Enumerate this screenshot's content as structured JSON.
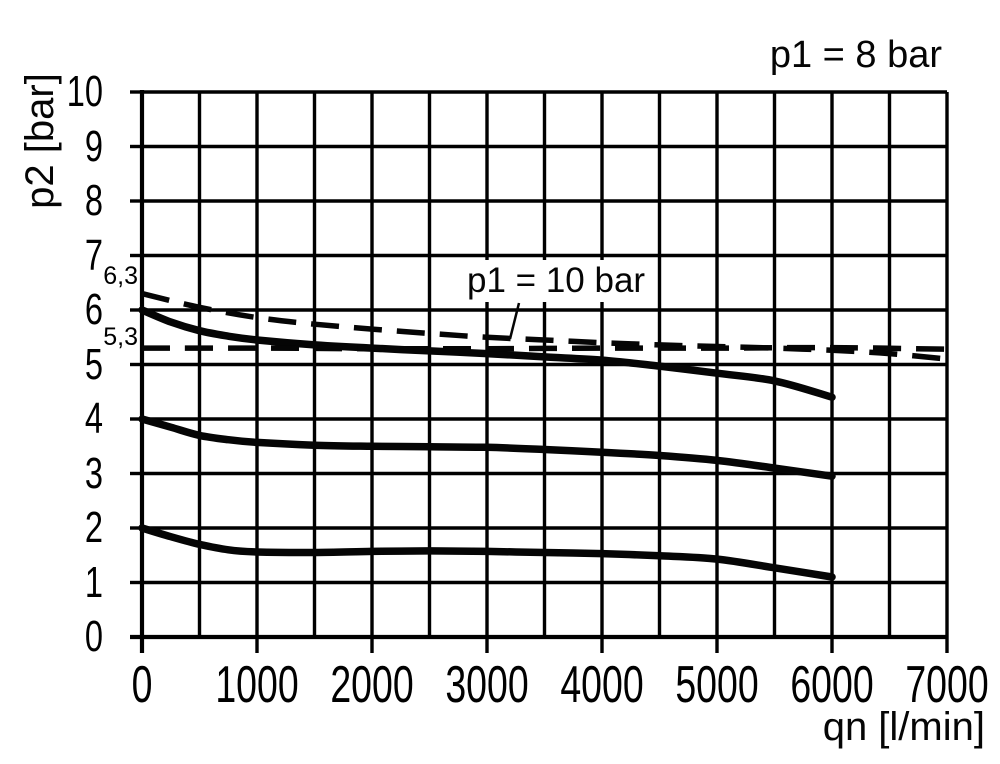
{
  "page": {
    "background": "#ffffff",
    "ink_color": "#050505"
  },
  "annotations": {
    "p1_8": {
      "text": "p1 = 8 bar"
    },
    "p1_10": {
      "text": "p1 = 10 bar"
    }
  },
  "axes": {
    "x": {
      "label": "qn [l/min]",
      "tick_labels": [
        "0",
        "1000",
        "2000",
        "3000",
        "4000",
        "5000",
        "6000",
        "7000"
      ],
      "tick_values": [
        0,
        1000,
        2000,
        3000,
        4000,
        5000,
        6000,
        7000
      ]
    },
    "y": {
      "label": "p2 [bar]",
      "tick_labels": [
        "10",
        "9",
        "8",
        "7",
        "6",
        "5",
        "4",
        "3",
        "2",
        "1",
        "0"
      ],
      "tick_values": [
        10,
        9,
        8,
        7,
        6,
        5,
        4,
        3,
        2,
        1,
        0
      ],
      "extra_labels": [
        {
          "text": "6,3",
          "value": 6.3
        },
        {
          "text": "5,3",
          "value": 5.3
        }
      ]
    }
  },
  "chart_data": {
    "type": "line",
    "title": "p1 = 8 bar",
    "xlabel": "qn [l/min]",
    "ylabel": "p2 [bar]",
    "xlim": [
      0,
      7000
    ],
    "ylim": [
      0,
      10
    ],
    "grid": true,
    "x_grid_step": 500,
    "y_grid_step": 1,
    "legend_position": "none",
    "annotations": [
      {
        "text": "p1 = 8 bar",
        "position": "top-right",
        "applies_to": "solid curves"
      },
      {
        "text": "p1 = 10 bar",
        "applies_to": "dashed curve starting at 6.3 bar",
        "leader_to": {
          "x": 3200,
          "y": 5.47
        }
      }
    ],
    "series": [
      {
        "name": "outlet setting 6 bar (p1 = 8 bar)",
        "style": "solid",
        "x": [
          0,
          250,
          500,
          750,
          1000,
          1500,
          2000,
          2500,
          3000,
          3500,
          4000,
          4500,
          5000,
          5500,
          6000
        ],
        "y": [
          6.0,
          5.78,
          5.62,
          5.52,
          5.45,
          5.36,
          5.3,
          5.25,
          5.2,
          5.14,
          5.08,
          4.97,
          4.84,
          4.7,
          4.4
        ]
      },
      {
        "name": "outlet setting 4 bar (p1 = 8 bar)",
        "style": "solid",
        "x": [
          0,
          250,
          500,
          750,
          1000,
          1500,
          2000,
          2500,
          3000,
          3500,
          4000,
          4500,
          5000,
          5500,
          6000
        ],
        "y": [
          4.0,
          3.85,
          3.7,
          3.62,
          3.57,
          3.52,
          3.5,
          3.49,
          3.48,
          3.44,
          3.39,
          3.33,
          3.24,
          3.1,
          2.95
        ]
      },
      {
        "name": "outlet setting 2 bar (p1 = 8 bar)",
        "style": "solid",
        "x": [
          0,
          250,
          500,
          750,
          1000,
          1500,
          2000,
          2500,
          3000,
          3500,
          4000,
          4500,
          5000,
          5500,
          6000
        ],
        "y": [
          2.0,
          1.84,
          1.7,
          1.6,
          1.56,
          1.55,
          1.57,
          1.58,
          1.57,
          1.55,
          1.53,
          1.49,
          1.43,
          1.27,
          1.1
        ]
      },
      {
        "name": "outlet setting 6,3 bar (p1 = 10 bar)",
        "style": "dashed",
        "x": [
          0,
          500,
          1000,
          1500,
          2000,
          2500,
          3000,
          3500,
          4000,
          4500,
          5000,
          5500,
          6000,
          6500,
          7000
        ],
        "y": [
          6.3,
          6.05,
          5.86,
          5.74,
          5.65,
          5.57,
          5.5,
          5.45,
          5.4,
          5.36,
          5.33,
          5.3,
          5.26,
          5.2,
          5.1
        ]
      },
      {
        "name": "reference line 5,3 bar",
        "style": "dashed",
        "x": [
          0,
          1000,
          2000,
          3000,
          4000,
          5000,
          6000,
          7000
        ],
        "y": [
          5.3,
          5.3,
          5.29,
          5.29,
          5.3,
          5.3,
          5.31,
          5.28
        ]
      }
    ]
  }
}
